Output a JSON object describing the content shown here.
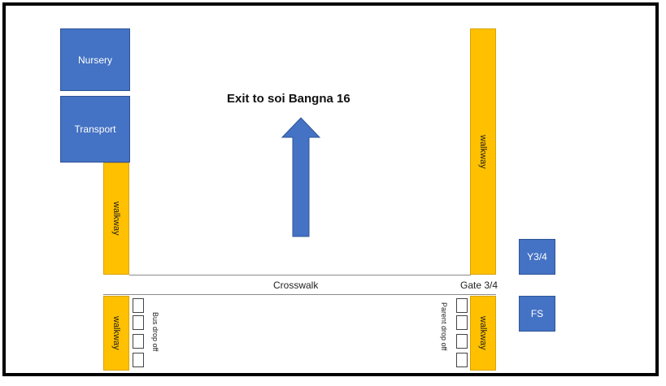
{
  "title": "Exit  to soi Bangna 16",
  "buildings": {
    "nursery": "Nursery",
    "transport": "Transport",
    "y34": "Y3/4",
    "fs": "FS"
  },
  "walkway_label": "walkway",
  "crosswalk_label": "Crosswalk",
  "gate_label": "Gate 3/4",
  "bus_dropoff_label": "Bus drop off",
  "parent_dropoff_label": "Parent drop off",
  "colors": {
    "building": "#4472c4",
    "walkway": "#ffc000",
    "arrow": "#4472c4"
  },
  "icons": {
    "direction": "arrow-up-icon"
  }
}
